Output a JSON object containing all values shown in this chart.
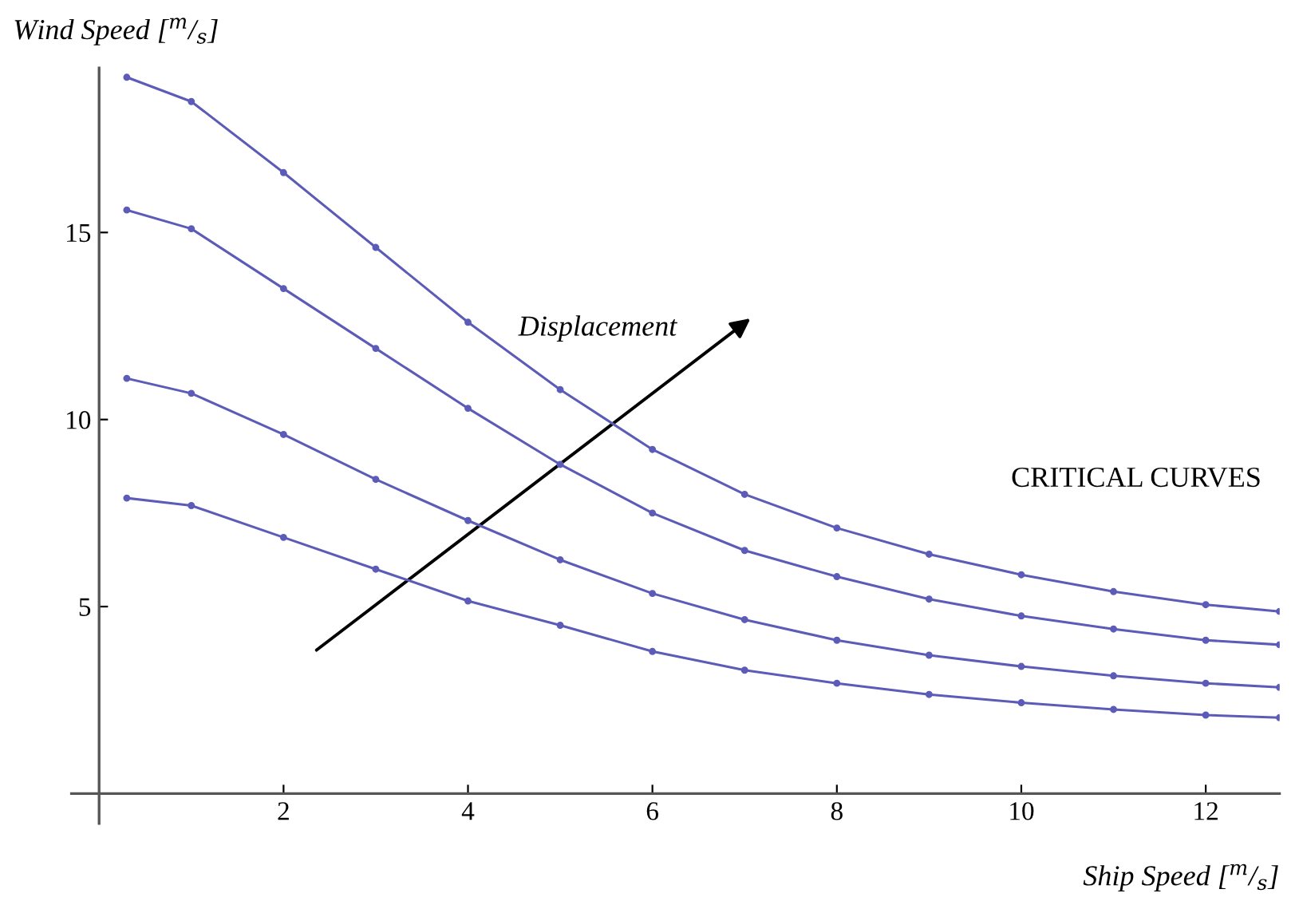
{
  "chart_data": {
    "type": "line",
    "xlabel": "Ship Speed [$^{m}$/$_{s}$]",
    "ylabel": "Wind Speed [$^{m}$/$_{s}$]",
    "annotations": [
      "Displacement",
      "CRITICAL CURVES"
    ],
    "x": [
      0.3,
      1,
      2,
      3,
      4,
      5,
      6,
      7,
      8,
      9,
      10,
      11,
      12,
      12.8
    ],
    "series": [
      {
        "color": "#5c5cb8",
        "values": [
          19.15,
          18.5,
          16.6,
          14.6,
          12.6,
          10.8,
          9.2,
          8.0,
          7.1,
          6.4,
          5.85,
          5.4,
          5.05,
          4.87
        ]
      },
      {
        "color": "#5c5cb8",
        "values": [
          15.6,
          15.1,
          13.5,
          11.9,
          10.3,
          8.8,
          7.5,
          6.5,
          5.8,
          5.2,
          4.75,
          4.4,
          4.1,
          3.98
        ]
      },
      {
        "color": "#5c5cb8",
        "values": [
          11.1,
          10.7,
          9.6,
          8.4,
          7.3,
          6.25,
          5.35,
          4.65,
          4.1,
          3.7,
          3.4,
          3.15,
          2.95,
          2.84
        ]
      },
      {
        "color": "#5c5cb8",
        "values": [
          7.9,
          7.7,
          6.85,
          6.0,
          5.15,
          4.5,
          3.8,
          3.3,
          2.95,
          2.65,
          2.43,
          2.25,
          2.1,
          2.03
        ]
      }
    ],
    "xlim": [
      -0.3,
      12.8
    ],
    "ylim": [
      -0.8,
      19.4
    ],
    "xticks": [
      2,
      4,
      6,
      8,
      10,
      12
    ],
    "yticks": [
      5,
      10,
      15
    ],
    "grid": false,
    "legend": false,
    "marker": "circle",
    "line_style": "solid"
  }
}
